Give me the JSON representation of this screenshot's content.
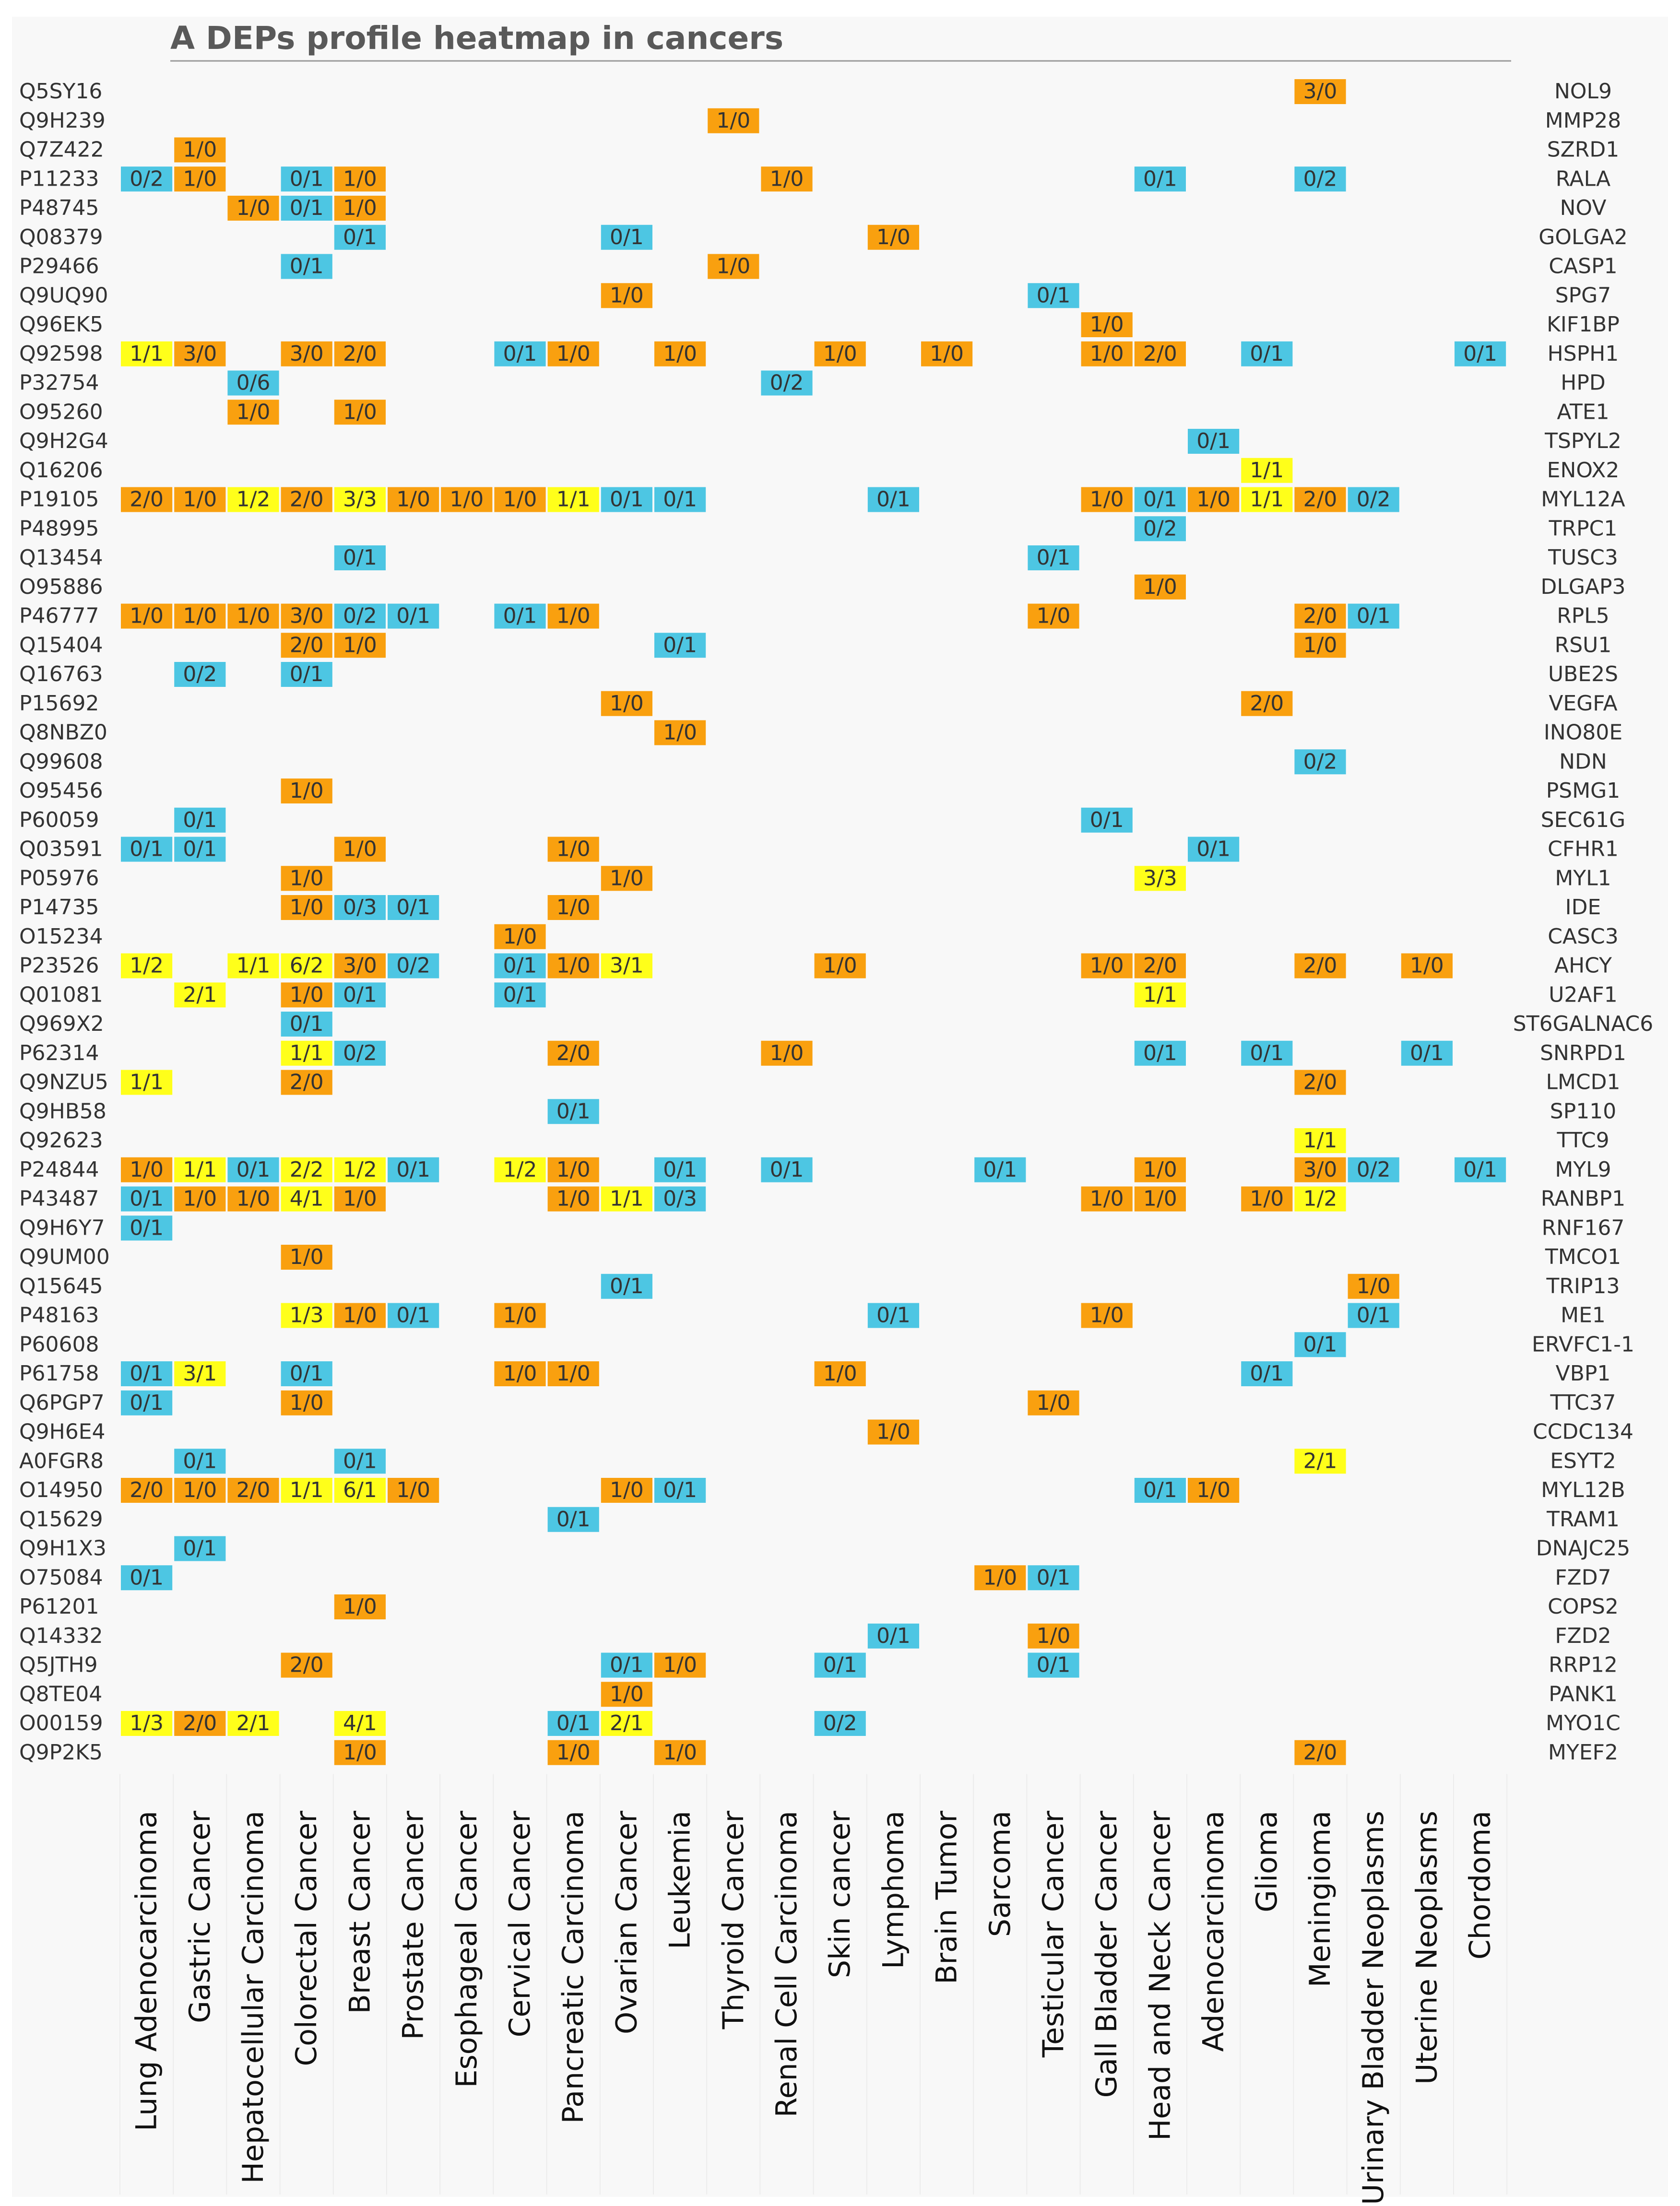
{
  "chart_data": {
    "type": "heatmap",
    "title": "A DEPs profile heatmap in cancers",
    "colors": {
      "up": "#F9A00F",
      "down": "#4DC6E3",
      "both": "#FFFF1A",
      "background": "#F8F8F8",
      "title": "#595959",
      "label": "#333333"
    },
    "columns": [
      "Lung Adenocarcinoma",
      "Gastric Cancer",
      "Hepatocellular Carcinoma",
      "Colorectal Cancer",
      "Breast Cancer",
      "Prostate Cancer",
      "Esophageal Cancer",
      "Cervical Cancer",
      "Pancreatic Carcinoma",
      "Ovarian Cancer",
      "Leukemia",
      "Thyroid Cancer",
      "Renal Cell Carcinoma",
      "Skin cancer",
      "Lymphoma",
      "Brain Tumor",
      "Sarcoma",
      "Testicular Cancer",
      "Gall Bladder Cancer",
      "Head and Neck Cancer",
      "Adenocarcinoma",
      "Glioma",
      "Meningioma",
      "Urinary Bladder Neoplasms",
      "Uterine Neoplasms",
      "Chordoma"
    ],
    "rows": [
      {
        "id": "Q5SY16",
        "gene": "NOL9",
        "cells": [
          [
            22,
            "3/0"
          ]
        ]
      },
      {
        "id": "Q9H239",
        "gene": "MMP28",
        "cells": [
          [
            11,
            "1/0"
          ]
        ]
      },
      {
        "id": "Q7Z422",
        "gene": "SZRD1",
        "cells": [
          [
            1,
            "1/0"
          ]
        ]
      },
      {
        "id": "P11233",
        "gene": "RALA",
        "cells": [
          [
            0,
            "0/2"
          ],
          [
            1,
            "1/0"
          ],
          [
            3,
            "0/1"
          ],
          [
            4,
            "1/0"
          ],
          [
            12,
            "1/0"
          ],
          [
            19,
            "0/1"
          ],
          [
            22,
            "0/2"
          ]
        ]
      },
      {
        "id": "P48745",
        "gene": "NOV",
        "cells": [
          [
            2,
            "1/0"
          ],
          [
            3,
            "0/1"
          ],
          [
            4,
            "1/0"
          ]
        ]
      },
      {
        "id": "Q08379",
        "gene": "GOLGA2",
        "cells": [
          [
            4,
            "0/1"
          ],
          [
            9,
            "0/1"
          ],
          [
            14,
            "1/0"
          ]
        ]
      },
      {
        "id": "P29466",
        "gene": "CASP1",
        "cells": [
          [
            3,
            "0/1"
          ],
          [
            11,
            "1/0"
          ]
        ]
      },
      {
        "id": "Q9UQ90",
        "gene": "SPG7",
        "cells": [
          [
            9,
            "1/0"
          ],
          [
            17,
            "0/1"
          ]
        ]
      },
      {
        "id": "Q96EK5",
        "gene": "KIF1BP",
        "cells": [
          [
            18,
            "1/0"
          ]
        ]
      },
      {
        "id": "Q92598",
        "gene": "HSPH1",
        "cells": [
          [
            0,
            "1/1"
          ],
          [
            1,
            "3/0"
          ],
          [
            3,
            "3/0"
          ],
          [
            4,
            "2/0"
          ],
          [
            7,
            "0/1"
          ],
          [
            8,
            "1/0"
          ],
          [
            10,
            "1/0"
          ],
          [
            13,
            "1/0"
          ],
          [
            15,
            "1/0"
          ],
          [
            18,
            "1/0"
          ],
          [
            19,
            "2/0"
          ],
          [
            21,
            "0/1"
          ],
          [
            25,
            "0/1"
          ]
        ]
      },
      {
        "id": "P32754",
        "gene": "HPD",
        "cells": [
          [
            2,
            "0/6"
          ],
          [
            12,
            "0/2"
          ]
        ]
      },
      {
        "id": "O95260",
        "gene": "ATE1",
        "cells": [
          [
            2,
            "1/0"
          ],
          [
            4,
            "1/0"
          ]
        ]
      },
      {
        "id": "Q9H2G4",
        "gene": "TSPYL2",
        "cells": [
          [
            20,
            "0/1"
          ]
        ]
      },
      {
        "id": "Q16206",
        "gene": "ENOX2",
        "cells": [
          [
            21,
            "1/1"
          ]
        ]
      },
      {
        "id": "P19105",
        "gene": "MYL12A",
        "cells": [
          [
            0,
            "2/0"
          ],
          [
            1,
            "1/0"
          ],
          [
            2,
            "1/2"
          ],
          [
            3,
            "2/0"
          ],
          [
            4,
            "3/3"
          ],
          [
            5,
            "1/0"
          ],
          [
            6,
            "1/0"
          ],
          [
            7,
            "1/0"
          ],
          [
            8,
            "1/1"
          ],
          [
            9,
            "0/1"
          ],
          [
            10,
            "0/1"
          ],
          [
            14,
            "0/1"
          ],
          [
            18,
            "1/0"
          ],
          [
            19,
            "0/1"
          ],
          [
            20,
            "1/0"
          ],
          [
            21,
            "1/1"
          ],
          [
            22,
            "2/0"
          ],
          [
            23,
            "0/2"
          ]
        ]
      },
      {
        "id": "P48995",
        "gene": "TRPC1",
        "cells": [
          [
            19,
            "0/2"
          ]
        ]
      },
      {
        "id": "Q13454",
        "gene": "TUSC3",
        "cells": [
          [
            4,
            "0/1"
          ],
          [
            17,
            "0/1"
          ]
        ]
      },
      {
        "id": "O95886",
        "gene": "DLGAP3",
        "cells": [
          [
            19,
            "1/0"
          ]
        ]
      },
      {
        "id": "P46777",
        "gene": "RPL5",
        "cells": [
          [
            0,
            "1/0"
          ],
          [
            1,
            "1/0"
          ],
          [
            2,
            "1/0"
          ],
          [
            3,
            "3/0"
          ],
          [
            4,
            "0/2"
          ],
          [
            5,
            "0/1"
          ],
          [
            7,
            "0/1"
          ],
          [
            8,
            "1/0"
          ],
          [
            17,
            "1/0"
          ],
          [
            22,
            "2/0"
          ],
          [
            23,
            "0/1"
          ]
        ]
      },
      {
        "id": "Q15404",
        "gene": "RSU1",
        "cells": [
          [
            3,
            "2/0"
          ],
          [
            4,
            "1/0"
          ],
          [
            10,
            "0/1"
          ],
          [
            22,
            "1/0"
          ]
        ]
      },
      {
        "id": "Q16763",
        "gene": "UBE2S",
        "cells": [
          [
            1,
            "0/2"
          ],
          [
            3,
            "0/1"
          ]
        ]
      },
      {
        "id": "P15692",
        "gene": "VEGFA",
        "cells": [
          [
            9,
            "1/0"
          ],
          [
            21,
            "2/0"
          ]
        ]
      },
      {
        "id": "Q8NBZ0",
        "gene": "INO80E",
        "cells": [
          [
            10,
            "1/0"
          ]
        ]
      },
      {
        "id": "Q99608",
        "gene": "NDN",
        "cells": [
          [
            22,
            "0/2"
          ]
        ]
      },
      {
        "id": "O95456",
        "gene": "PSMG1",
        "cells": [
          [
            3,
            "1/0"
          ]
        ]
      },
      {
        "id": "P60059",
        "gene": "SEC61G",
        "cells": [
          [
            1,
            "0/1"
          ],
          [
            18,
            "0/1"
          ]
        ]
      },
      {
        "id": "Q03591",
        "gene": "CFHR1",
        "cells": [
          [
            0,
            "0/1"
          ],
          [
            1,
            "0/1"
          ],
          [
            4,
            "1/0"
          ],
          [
            8,
            "1/0"
          ],
          [
            20,
            "0/1"
          ]
        ]
      },
      {
        "id": "P05976",
        "gene": "MYL1",
        "cells": [
          [
            3,
            "1/0"
          ],
          [
            9,
            "1/0"
          ],
          [
            19,
            "3/3"
          ]
        ]
      },
      {
        "id": "P14735",
        "gene": "IDE",
        "cells": [
          [
            3,
            "1/0"
          ],
          [
            4,
            "0/3"
          ],
          [
            5,
            "0/1"
          ],
          [
            8,
            "1/0"
          ]
        ]
      },
      {
        "id": "O15234",
        "gene": "CASC3",
        "cells": [
          [
            7,
            "1/0"
          ]
        ]
      },
      {
        "id": "P23526",
        "gene": "AHCY",
        "cells": [
          [
            0,
            "1/2"
          ],
          [
            2,
            "1/1"
          ],
          [
            3,
            "6/2"
          ],
          [
            4,
            "3/0"
          ],
          [
            5,
            "0/2"
          ],
          [
            7,
            "0/1"
          ],
          [
            8,
            "1/0"
          ],
          [
            9,
            "3/1"
          ],
          [
            13,
            "1/0"
          ],
          [
            18,
            "1/0"
          ],
          [
            19,
            "2/0"
          ],
          [
            22,
            "2/0"
          ],
          [
            24,
            "1/0"
          ]
        ]
      },
      {
        "id": "Q01081",
        "gene": "U2AF1",
        "cells": [
          [
            1,
            "2/1"
          ],
          [
            3,
            "1/0"
          ],
          [
            4,
            "0/1"
          ],
          [
            7,
            "0/1"
          ],
          [
            19,
            "1/1"
          ]
        ]
      },
      {
        "id": "Q969X2",
        "gene": "ST6GALNAC6",
        "cells": [
          [
            3,
            "0/1"
          ]
        ]
      },
      {
        "id": "P62314",
        "gene": "SNRPD1",
        "cells": [
          [
            3,
            "1/1"
          ],
          [
            4,
            "0/2"
          ],
          [
            8,
            "2/0"
          ],
          [
            12,
            "1/0"
          ],
          [
            19,
            "0/1"
          ],
          [
            21,
            "0/1"
          ],
          [
            24,
            "0/1"
          ]
        ]
      },
      {
        "id": "Q9NZU5",
        "gene": "LMCD1",
        "cells": [
          [
            0,
            "1/1"
          ],
          [
            3,
            "2/0"
          ],
          [
            22,
            "2/0"
          ]
        ]
      },
      {
        "id": "Q9HB58",
        "gene": "SP110",
        "cells": [
          [
            8,
            "0/1"
          ]
        ]
      },
      {
        "id": "Q92623",
        "gene": "TTC9",
        "cells": [
          [
            22,
            "1/1"
          ]
        ]
      },
      {
        "id": "P24844",
        "gene": "MYL9",
        "cells": [
          [
            0,
            "1/0"
          ],
          [
            1,
            "1/1"
          ],
          [
            2,
            "0/1"
          ],
          [
            3,
            "2/2"
          ],
          [
            4,
            "1/2"
          ],
          [
            5,
            "0/1"
          ],
          [
            7,
            "1/2"
          ],
          [
            8,
            "1/0"
          ],
          [
            10,
            "0/1"
          ],
          [
            12,
            "0/1"
          ],
          [
            16,
            "0/1"
          ],
          [
            19,
            "1/0"
          ],
          [
            22,
            "3/0"
          ],
          [
            23,
            "0/2"
          ],
          [
            25,
            "0/1"
          ]
        ]
      },
      {
        "id": "P43487",
        "gene": "RANBP1",
        "cells": [
          [
            0,
            "0/1"
          ],
          [
            1,
            "1/0"
          ],
          [
            2,
            "1/0"
          ],
          [
            3,
            "4/1"
          ],
          [
            4,
            "1/0"
          ],
          [
            8,
            "1/0"
          ],
          [
            9,
            "1/1"
          ],
          [
            10,
            "0/3"
          ],
          [
            18,
            "1/0"
          ],
          [
            19,
            "1/0"
          ],
          [
            21,
            "1/0"
          ],
          [
            22,
            "1/2"
          ]
        ]
      },
      {
        "id": "Q9H6Y7",
        "gene": "RNF167",
        "cells": [
          [
            0,
            "0/1"
          ]
        ]
      },
      {
        "id": "Q9UM00",
        "gene": "TMCO1",
        "cells": [
          [
            3,
            "1/0"
          ]
        ]
      },
      {
        "id": "Q15645",
        "gene": "TRIP13",
        "cells": [
          [
            9,
            "0/1"
          ],
          [
            23,
            "1/0"
          ]
        ]
      },
      {
        "id": "P48163",
        "gene": "ME1",
        "cells": [
          [
            3,
            "1/3"
          ],
          [
            4,
            "1/0"
          ],
          [
            5,
            "0/1"
          ],
          [
            7,
            "1/0"
          ],
          [
            14,
            "0/1"
          ],
          [
            18,
            "1/0"
          ],
          [
            23,
            "0/1"
          ]
        ]
      },
      {
        "id": "P60608",
        "gene": "ERVFC1-1",
        "cells": [
          [
            22,
            "0/1"
          ]
        ]
      },
      {
        "id": "P61758",
        "gene": "VBP1",
        "cells": [
          [
            0,
            "0/1"
          ],
          [
            1,
            "3/1"
          ],
          [
            3,
            "0/1"
          ],
          [
            7,
            "1/0"
          ],
          [
            8,
            "1/0"
          ],
          [
            13,
            "1/0"
          ],
          [
            21,
            "0/1"
          ]
        ]
      },
      {
        "id": "Q6PGP7",
        "gene": "TTC37",
        "cells": [
          [
            0,
            "0/1"
          ],
          [
            3,
            "1/0"
          ],
          [
            17,
            "1/0"
          ]
        ]
      },
      {
        "id": "Q9H6E4",
        "gene": "CCDC134",
        "cells": [
          [
            14,
            "1/0"
          ]
        ]
      },
      {
        "id": "A0FGR8",
        "gene": "ESYT2",
        "cells": [
          [
            1,
            "0/1"
          ],
          [
            4,
            "0/1"
          ],
          [
            22,
            "2/1"
          ]
        ]
      },
      {
        "id": "O14950",
        "gene": "MYL12B",
        "cells": [
          [
            0,
            "2/0"
          ],
          [
            1,
            "1/0"
          ],
          [
            2,
            "2/0"
          ],
          [
            3,
            "1/1"
          ],
          [
            4,
            "6/1"
          ],
          [
            5,
            "1/0"
          ],
          [
            9,
            "1/0"
          ],
          [
            10,
            "0/1"
          ],
          [
            19,
            "0/1"
          ],
          [
            20,
            "1/0"
          ]
        ]
      },
      {
        "id": "Q15629",
        "gene": "TRAM1",
        "cells": [
          [
            8,
            "0/1"
          ]
        ]
      },
      {
        "id": "Q9H1X3",
        "gene": "DNAJC25",
        "cells": [
          [
            1,
            "0/1"
          ]
        ]
      },
      {
        "id": "O75084",
        "gene": "FZD7",
        "cells": [
          [
            0,
            "0/1"
          ],
          [
            16,
            "1/0"
          ],
          [
            17,
            "0/1"
          ]
        ]
      },
      {
        "id": "P61201",
        "gene": "COPS2",
        "cells": [
          [
            4,
            "1/0"
          ]
        ]
      },
      {
        "id": "Q14332",
        "gene": "FZD2",
        "cells": [
          [
            14,
            "0/1"
          ],
          [
            17,
            "1/0"
          ]
        ]
      },
      {
        "id": "Q5JTH9",
        "gene": "RRP12",
        "cells": [
          [
            3,
            "2/0"
          ],
          [
            9,
            "0/1"
          ],
          [
            10,
            "1/0"
          ],
          [
            13,
            "0/1"
          ],
          [
            17,
            "0/1"
          ]
        ]
      },
      {
        "id": "Q8TE04",
        "gene": "PANK1",
        "cells": [
          [
            9,
            "1/0"
          ]
        ]
      },
      {
        "id": "O00159",
        "gene": "MYO1C",
        "cells": [
          [
            0,
            "1/3"
          ],
          [
            1,
            "2/0"
          ],
          [
            2,
            "2/1"
          ],
          [
            4,
            "4/1"
          ],
          [
            8,
            "0/1"
          ],
          [
            9,
            "2/1"
          ],
          [
            13,
            "0/2"
          ]
        ]
      },
      {
        "id": "Q9P2K5",
        "gene": "MYEF2",
        "cells": [
          [
            4,
            "1/0"
          ],
          [
            8,
            "1/0"
          ],
          [
            10,
            "1/0"
          ],
          [
            22,
            "2/0"
          ]
        ]
      }
    ]
  }
}
